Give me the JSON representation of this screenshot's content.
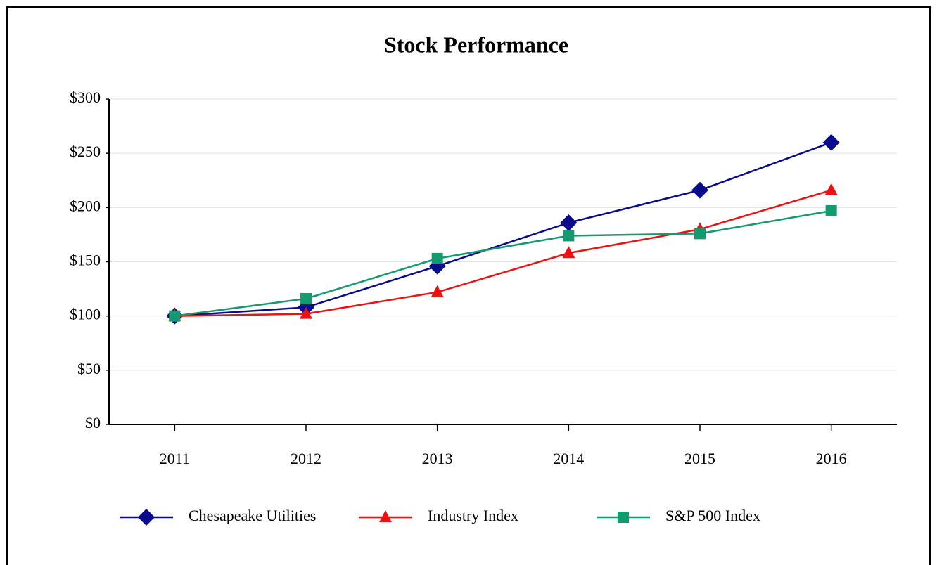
{
  "chart_data": {
    "type": "line",
    "title": "Stock Performance",
    "categories": [
      "2011",
      "2012",
      "2013",
      "2014",
      "2015",
      "2016"
    ],
    "series": [
      {
        "name": "Chesapeake Utilities",
        "color": "#0a0a8c",
        "marker": "diamond",
        "values": [
          100,
          108,
          146,
          186,
          216,
          260
        ]
      },
      {
        "name": "Industry Index",
        "color": "#ee1111",
        "marker": "triangle",
        "values": [
          100,
          102,
          122,
          158,
          180,
          216
        ]
      },
      {
        "name": "S&P 500 Index",
        "color": "#139a6e",
        "marker": "square",
        "values": [
          100,
          116,
          153,
          174,
          176,
          197
        ]
      }
    ],
    "ylim": [
      0,
      300
    ],
    "yticks": [
      {
        "value": 0,
        "label": "$0"
      },
      {
        "value": 50,
        "label": "$50"
      },
      {
        "value": 100,
        "label": "$100"
      },
      {
        "value": 150,
        "label": "$150"
      },
      {
        "value": 200,
        "label": "$200"
      },
      {
        "value": 250,
        "label": "$250"
      },
      {
        "value": 300,
        "label": "$300"
      }
    ],
    "grid": true,
    "legend": "bottom"
  }
}
